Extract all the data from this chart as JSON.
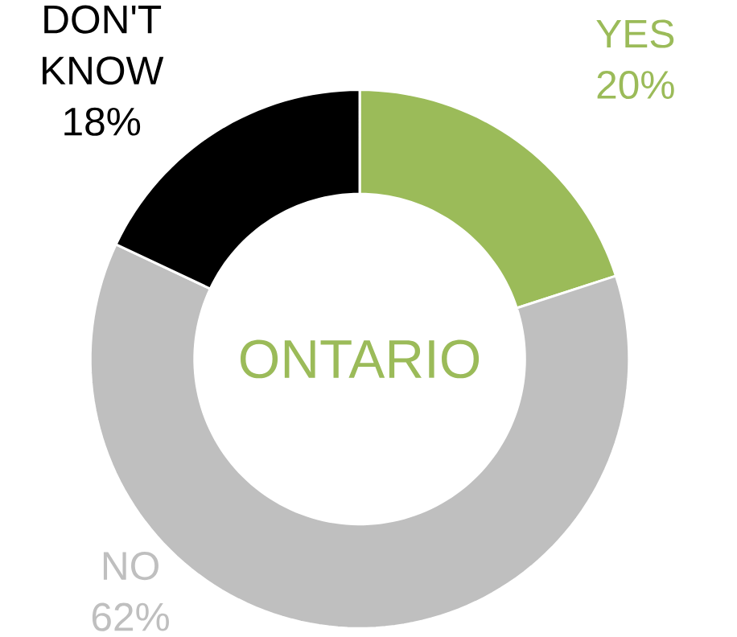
{
  "chart_data": {
    "type": "donut",
    "title": "ONTARIO",
    "categories": [
      "YES",
      "NO",
      "DON'T KNOW"
    ],
    "values": [
      20,
      62,
      18
    ],
    "value_labels": [
      "20%",
      "62%",
      "18%"
    ],
    "colors": [
      "#9bbb59",
      "#bfbfbf",
      "#000000"
    ],
    "legend": false
  }
}
